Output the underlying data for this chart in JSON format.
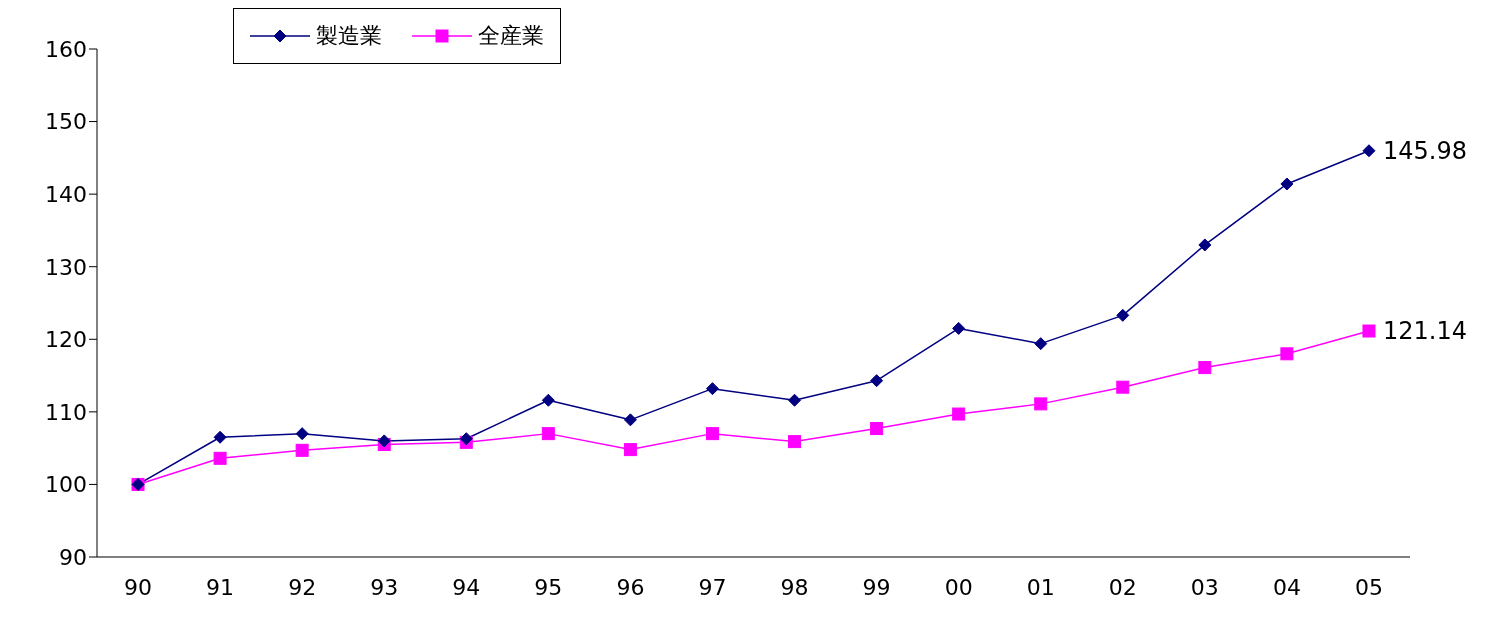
{
  "chart_data": {
    "type": "line",
    "categories": [
      "90",
      "91",
      "92",
      "93",
      "94",
      "95",
      "96",
      "97",
      "98",
      "99",
      "00",
      "01",
      "02",
      "03",
      "04",
      "05"
    ],
    "series": [
      {
        "name": "製造業",
        "color": "#000080",
        "marker": "diamond",
        "values": [
          100,
          106.5,
          107,
          106,
          106.3,
          111.6,
          108.9,
          113.2,
          111.6,
          114.3,
          121.5,
          119.4,
          123.3,
          133,
          141.4,
          145.98
        ],
        "value_labels": [
          null,
          null,
          null,
          null,
          null,
          null,
          null,
          null,
          null,
          null,
          null,
          null,
          null,
          null,
          null,
          "145.98"
        ]
      },
      {
        "name": "全産業",
        "color": "#ff00ff",
        "marker": "square",
        "values": [
          100,
          103.6,
          104.7,
          105.5,
          105.8,
          107,
          104.8,
          107,
          105.9,
          107.7,
          109.7,
          111.1,
          113.4,
          116.1,
          118,
          121.14
        ],
        "value_labels": [
          null,
          null,
          null,
          null,
          null,
          null,
          null,
          null,
          null,
          null,
          null,
          null,
          null,
          null,
          null,
          "121.14"
        ]
      }
    ],
    "ylim": [
      90,
      160
    ],
    "yticks": [
      90,
      100,
      110,
      120,
      130,
      140,
      150,
      160
    ],
    "grid": false,
    "legend": "top left"
  }
}
